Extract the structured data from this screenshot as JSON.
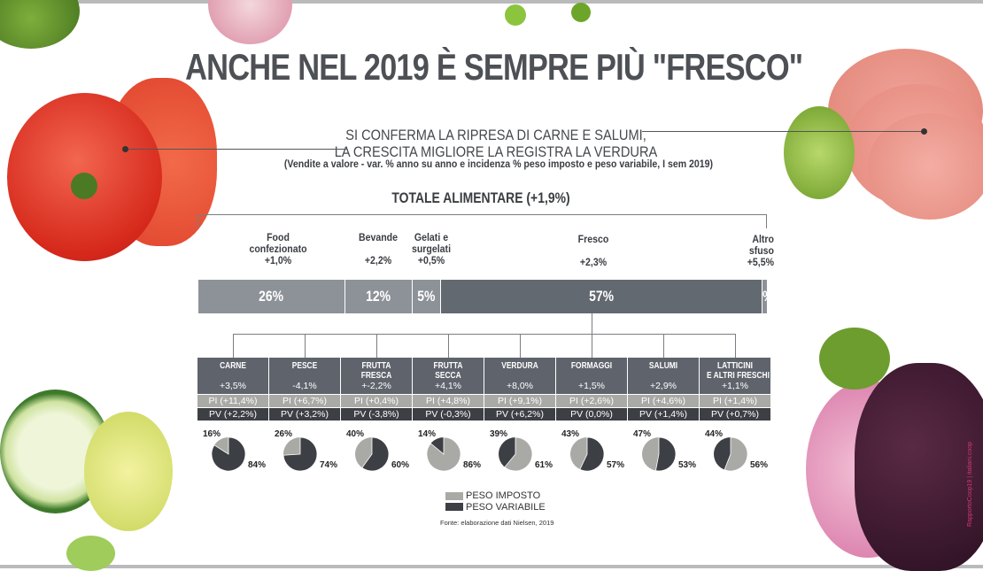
{
  "title": "ANCHE NEL 2019 È SEMPRE PIÙ \"FRESCO\"",
  "subtitle_line1": "SI CONFERMA LA RIPRESA DI CARNE E SALUMI,",
  "subtitle_line2": "LA CRESCITA MIGLIORE LA REGISTRA LA VERDURA",
  "note": "(Vendite a valore - var. % anno su anno e incidenza % peso imposto e peso variabile, I sem 2019)",
  "side_credit": "RapportoCoop19 | italiani.coop",
  "colors": {
    "bar_light": "#8d9299",
    "bar_fresco": "#636971",
    "header": "#5f646c",
    "pi": "#a9aaa6",
    "pv": "#3c3f44"
  },
  "chart_data": [
    {
      "type": "bar",
      "title": "TOTALE ALIMENTARE (+1,9%)",
      "stacked": true,
      "categories": [
        {
          "name_l1": "Food",
          "name_l2": "confezionato",
          "change": "+1,0%",
          "share": 26,
          "share_label": "26%"
        },
        {
          "name_l1": "Bevande",
          "name_l2": "",
          "change": "+2,2%",
          "share": 12,
          "share_label": "12%"
        },
        {
          "name_l1": "Gelati e",
          "name_l2": "surgelati",
          "change": "+0,5%",
          "share": 5,
          "share_label": "5%"
        },
        {
          "name_l1": "Fresco",
          "name_l2": "",
          "change": "+2,3%",
          "share": 57,
          "share_label": "57%"
        },
        {
          "name_l1": "Altro",
          "name_l2": "sfuso",
          "change": "+5,5%",
          "share": 1,
          "share_label": "1%"
        }
      ]
    },
    {
      "type": "pie",
      "title": "Fresco - dettaglio",
      "legend": [
        "PESO IMPOSTO",
        "PESO VARIABILE"
      ],
      "items": [
        {
          "name": "CARNE",
          "change": "+3,5%",
          "pi": "PI (+11,4%)",
          "pv": "PV (+2,2%)",
          "share_pi": 16,
          "share_pv": 84
        },
        {
          "name": "PESCE",
          "change": "-4,1%",
          "pi": "PI (+6,7%)",
          "pv": "PV (+3,2%)",
          "share_pi": 26,
          "share_pv": 74
        },
        {
          "name": "FRUTTA\nFRESCA",
          "change": "+-2,2%",
          "pi": "PI (+0,4%)",
          "pv": "PV (-3,8%)",
          "share_pi": 40,
          "share_pv": 60
        },
        {
          "name": "FRUTTA\nSECCA",
          "change": "+4,1%",
          "pi": "PI (+4,8%)",
          "pv": "PV (-0,3%)",
          "share_pi": 86,
          "share_pv": 14
        },
        {
          "name": "VERDURA",
          "change": "+8,0%",
          "pi": "PI (+9,1%)",
          "pv": "PV (+6,2%)",
          "share_pi": 61,
          "share_pv": 39
        },
        {
          "name": "FORMAGGI",
          "change": "+1,5%",
          "pi": "PI (+2,6%)",
          "pv": "PV (0,0%)",
          "share_pi": 43,
          "share_pv": 57
        },
        {
          "name": "SALUMI",
          "change": "+2,9%",
          "pi": "PI (+4,6%)",
          "pv": "PV (+1,4%)",
          "share_pi": 47,
          "share_pv": 53
        },
        {
          "name": "LATTICINI\nE ALTRI FRESCHI",
          "change": "+1,1%",
          "pi": "PI (+1,4%)",
          "pv": "PV (+0,7%)",
          "share_pi": 56,
          "share_pv": 44
        }
      ]
    }
  ],
  "legend": {
    "pi": "PESO IMPOSTO",
    "pv": "PESO VARIABILE"
  },
  "source": "Fonte: elaborazione dati Nielsen, 2019"
}
